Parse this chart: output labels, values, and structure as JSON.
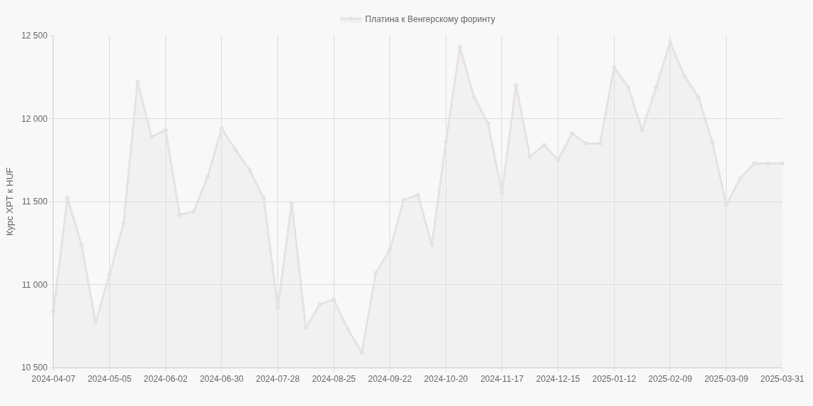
{
  "chart_data": {
    "type": "area",
    "ylabel": "Курс XPT к HUF",
    "categories": [
      "2024-04-07",
      null,
      null,
      null,
      "2024-05-05",
      null,
      null,
      null,
      "2024-06-02",
      null,
      null,
      null,
      "2024-06-30",
      null,
      null,
      null,
      "2024-07-28",
      null,
      null,
      null,
      "2024-08-25",
      null,
      null,
      null,
      "2024-09-22",
      null,
      null,
      null,
      "2024-10-20",
      null,
      null,
      null,
      "2024-11-17",
      null,
      null,
      null,
      "2024-12-15",
      null,
      null,
      null,
      "2025-01-12",
      null,
      null,
      null,
      "2025-02-09",
      null,
      null,
      null,
      "2025-03-09",
      null,
      null,
      null,
      "2025-03-31"
    ],
    "series": [
      {
        "name": "Платина к Венгерскому форинту",
        "color": "#e6e2e2",
        "values": [
          10840,
          11520,
          11240,
          10770,
          11060,
          11370,
          12220,
          11890,
          11930,
          11420,
          11440,
          11650,
          11940,
          11810,
          11690,
          11520,
          10860,
          11490,
          10740,
          10880,
          10910,
          10730,
          10590,
          11070,
          11210,
          11510,
          11540,
          11240,
          11860,
          12430,
          12130,
          11970,
          11550,
          12200,
          11770,
          11840,
          11750,
          11910,
          11850,
          11850,
          12310,
          12190,
          11930,
          12190,
          12460,
          12260,
          12130,
          11860,
          11480,
          11640,
          11730,
          11730,
          11730
        ]
      }
    ],
    "ylim": [
      10500,
      12500
    ],
    "yticks": [
      {
        "value": 10500,
        "label": "10 500"
      },
      {
        "value": 11000,
        "label": "11 000"
      },
      {
        "value": 11500,
        "label": "11 500"
      },
      {
        "value": 12000,
        "label": "12 000"
      },
      {
        "value": 12500,
        "label": "12 500"
      }
    ],
    "grid": true,
    "legend": "top",
    "marker": "circle",
    "line_style": "solid"
  }
}
